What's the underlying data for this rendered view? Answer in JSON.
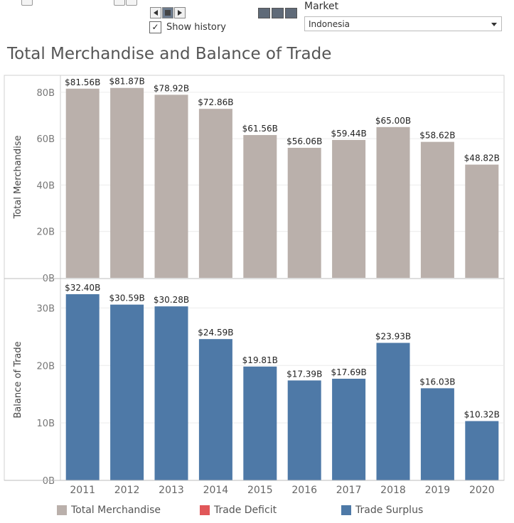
{
  "controls": {
    "show_history_label": "Show history",
    "show_history_checked": true,
    "checkmark": "✓",
    "market_label": "Market",
    "market_value": "Indonesia"
  },
  "colors": {
    "merchandise": "#bab0ab",
    "trade_deficit": "#e15759",
    "trade_surplus": "#4e79a7"
  },
  "legend": [
    {
      "label": "Total Merchandise",
      "color": "#bab0ab"
    },
    {
      "label": "Trade Deficit",
      "color": "#e15759"
    },
    {
      "label": "Trade Surplus",
      "color": "#4e79a7"
    }
  ],
  "chart_data": {
    "type": "bar",
    "title": "Total Merchandise and Balance of Trade",
    "categories": [
      "2011",
      "2012",
      "2013",
      "2014",
      "2015",
      "2016",
      "2017",
      "2018",
      "2019",
      "2020"
    ],
    "panels": [
      {
        "ylabel": "Total Merchandise",
        "ylim": [
          0,
          87
        ],
        "yticks": [
          0,
          20,
          40,
          60,
          80
        ],
        "ytick_labels": [
          "0B",
          "20B",
          "40B",
          "60B",
          "80B"
        ],
        "color": "#bab0ab",
        "values": [
          81.56,
          81.87,
          78.92,
          72.86,
          61.56,
          56.06,
          59.44,
          65.0,
          58.62,
          48.82
        ],
        "data_labels": [
          "$81.56B",
          "$81.87B",
          "$78.92B",
          "$72.86B",
          "$61.56B",
          "$56.06B",
          "$59.44B",
          "$65.00B",
          "$58.62B",
          "$48.82B"
        ]
      },
      {
        "ylabel": "Balance of Trade",
        "ylim": [
          0,
          35
        ],
        "yticks": [
          0,
          10,
          20,
          30
        ],
        "ytick_labels": [
          "0B",
          "10B",
          "20B",
          "30B"
        ],
        "color": "#4e79a7",
        "values": [
          32.4,
          30.59,
          30.28,
          24.59,
          19.81,
          17.39,
          17.69,
          23.93,
          16.03,
          10.32
        ],
        "data_labels": [
          "$32.40B",
          "$30.59B",
          "$30.28B",
          "$24.59B",
          "$19.81B",
          "$17.39B",
          "$17.69B",
          "$23.93B",
          "$16.03B",
          "$10.32B"
        ]
      }
    ]
  }
}
